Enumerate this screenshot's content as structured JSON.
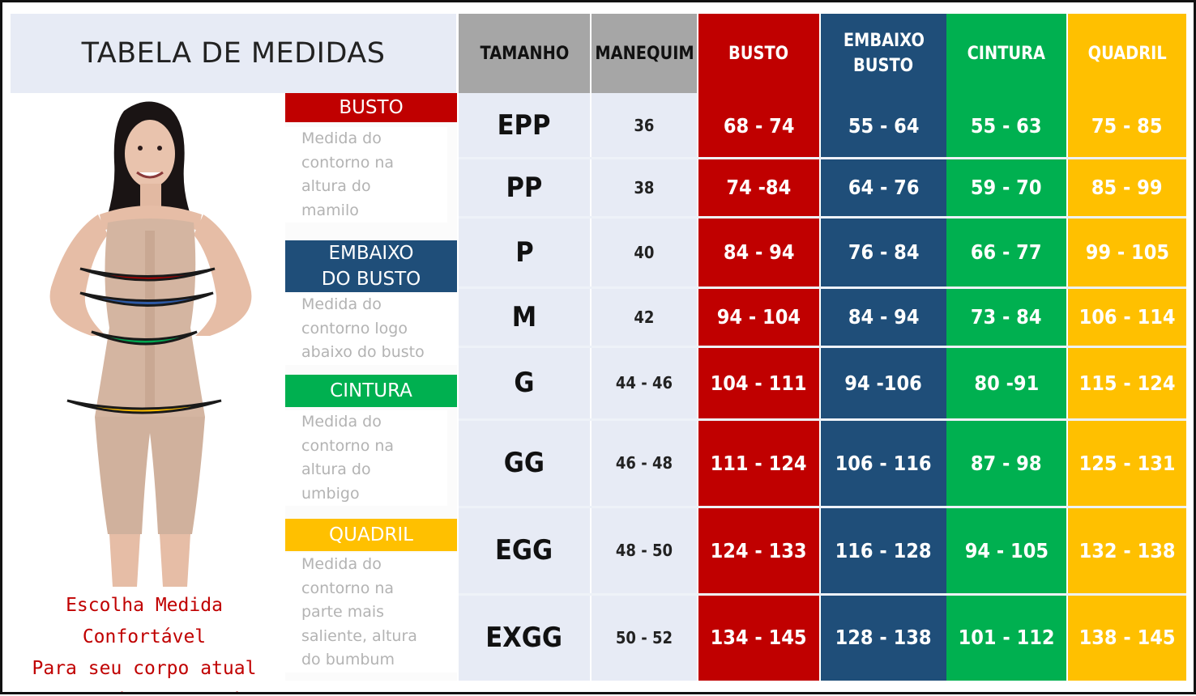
{
  "title": "TABELA DE MEDIDAS",
  "columns": {
    "size": "TAMANHO",
    "mannequin": "MANEQUIM",
    "bust": "BUSTO",
    "under_bust_1": "EMBAIXO",
    "under_bust_2": "BUSTO",
    "waist": "CINTURA",
    "hip": "QUADRIL"
  },
  "sections": {
    "bust": {
      "label": "BUSTO",
      "desc": [
        "Medida do",
        "contorno na",
        "altura do",
        "mamilo"
      ]
    },
    "under_bust": {
      "label_1": "EMBAIXO",
      "label_2": "DO BUSTO",
      "desc": [
        "Medida do",
        "contorno logo",
        "abaixo do busto"
      ]
    },
    "waist": {
      "label": "CINTURA",
      "desc": [
        "Medida do",
        "contorno na",
        "altura do",
        "umbigo"
      ]
    },
    "hip": {
      "label": "QUADRIL",
      "desc": [
        "Medida do",
        "contorno na",
        "parte mais",
        "saliente, altura",
        "do bumbum"
      ]
    }
  },
  "rows": [
    {
      "size": "EPP",
      "mannequin": "36",
      "bust": "68 - 74",
      "under_bust": "55 - 64",
      "waist": "55 - 63",
      "hip": "75 - 85"
    },
    {
      "size": "PP",
      "mannequin": "38",
      "bust": "74 -84",
      "under_bust": "64 - 76",
      "waist": "59 - 70",
      "hip": "85 - 99"
    },
    {
      "size": "P",
      "mannequin": "40",
      "bust": "84 - 94",
      "under_bust": "76 - 84",
      "waist": "66 - 77",
      "hip": "99 - 105"
    },
    {
      "size": "M",
      "mannequin": "42",
      "bust": "94 - 104",
      "under_bust": "84 - 94",
      "waist": "73 - 84",
      "hip": "106 - 114"
    },
    {
      "size": "G",
      "mannequin": "44 - 46",
      "bust": "104 - 111",
      "under_bust": "94 -106",
      "waist": "80 -91",
      "hip": "115 - 124"
    },
    {
      "size": "GG",
      "mannequin": "46 - 48",
      "bust": "111 - 124",
      "under_bust": "106 - 116",
      "waist": "87 - 98",
      "hip": "125 - 131"
    },
    {
      "size": "EGG",
      "mannequin": "48 - 50",
      "bust": "124 - 133",
      "under_bust": "116 - 128",
      "waist": "94 - 105",
      "hip": "132 - 138"
    },
    {
      "size": "EXGG",
      "mannequin": "50 - 52",
      "bust": "134 - 145",
      "under_bust": "128 - 138",
      "waist": "101 - 112",
      "hip": "138 - 145"
    }
  ],
  "caption": [
    "Escolha Medida Confortável",
    "Para seu corpo atual",
    "Nunca Muito Apertado."
  ],
  "colors": {
    "bust": "#c00000",
    "under_bust": "#1f4e79",
    "waist": "#00b050",
    "hip": "#ffc000",
    "header_gray": "#a6a6a6",
    "row_band": "#e7ebf5",
    "caption": "#c00000"
  },
  "figure": {
    "icon": "woman-in-shapewear-illustration",
    "tape_colors": [
      "#c00000",
      "#1f4e79",
      "#00b050",
      "#ffc000"
    ]
  }
}
